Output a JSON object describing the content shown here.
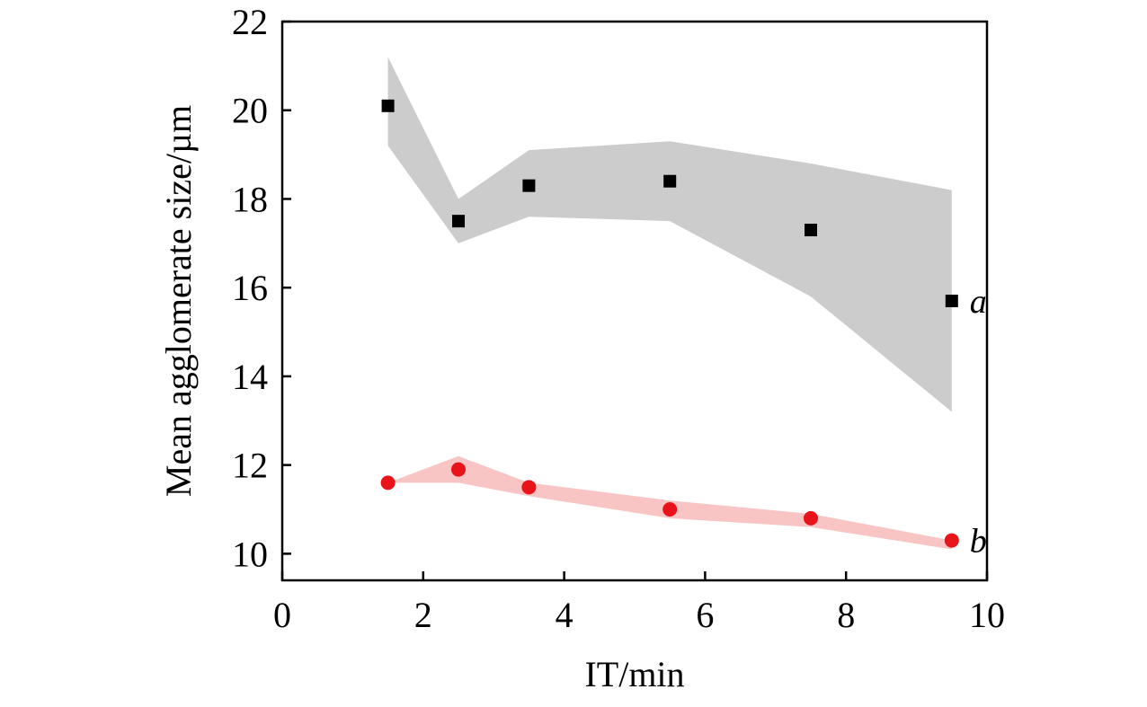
{
  "chart_data": {
    "type": "scatter",
    "title": "",
    "xlabel": "IT/min",
    "ylabel": "Mean agglomerate size/µm",
    "xlim": [
      0,
      10
    ],
    "ylim": [
      9.4,
      22
    ],
    "xticks": [
      0,
      2,
      4,
      6,
      8,
      10
    ],
    "yticks": [
      10,
      12,
      14,
      16,
      18,
      20,
      22
    ],
    "grid": false,
    "legend": "none",
    "series": [
      {
        "name": "a",
        "label": "a",
        "marker": "square",
        "color": "#000000",
        "band_color": "#cccccc",
        "x": [
          1.5,
          2.5,
          3.5,
          5.5,
          7.5,
          9.5
        ],
        "y": [
          20.1,
          17.5,
          18.3,
          18.4,
          17.3,
          15.7
        ],
        "band_upper": [
          21.2,
          18.0,
          19.1,
          19.3,
          18.8,
          18.2
        ],
        "band_lower": [
          19.2,
          17.0,
          17.6,
          17.5,
          15.8,
          13.2
        ]
      },
      {
        "name": "b",
        "label": "b",
        "marker": "circle",
        "color": "#e8141a",
        "band_color": "#f8c4c4",
        "x": [
          1.5,
          2.5,
          3.5,
          5.5,
          7.5,
          9.5
        ],
        "y": [
          11.6,
          11.9,
          11.5,
          11.0,
          10.8,
          10.3
        ],
        "band_upper": [
          11.6,
          12.2,
          11.6,
          11.2,
          10.9,
          10.3
        ],
        "band_lower": [
          11.6,
          11.6,
          11.3,
          10.8,
          10.6,
          10.1
        ]
      }
    ]
  }
}
